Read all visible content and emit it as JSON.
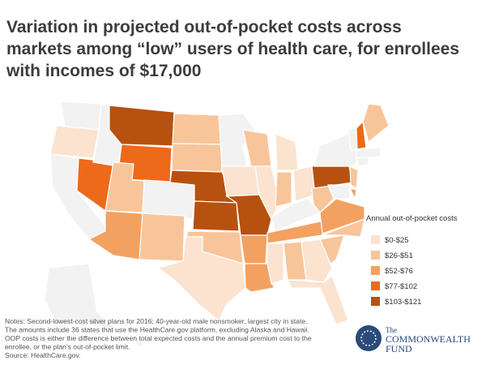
{
  "header": {
    "title_lines": [
      "Variation in projected out-of-pocket costs across",
      "markets among “low” users of health care, for enrollees",
      "with incomes of $17,000"
    ]
  },
  "legend": {
    "title": "Annual out-of-pocket costs",
    "items": [
      {
        "label": "$0-$25",
        "color": "#fbe3d0"
      },
      {
        "label": "$26-$51",
        "color": "#f8c59a"
      },
      {
        "label": "$52-$76",
        "color": "#f3a161"
      },
      {
        "label": "$77-$102",
        "color": "#ec6a1a"
      },
      {
        "label": "$103-$121",
        "color": "#b7510f"
      }
    ]
  },
  "notes": [
    "Notes: Second-lowest-cost silver plans for 2016; 40-year-old male nonsmoker, largest city in state.",
    "The amounts include 36 states that use the HealthCare.gov platform, excluding Alaska and Hawaii.",
    "OOP costs is either the difference between total expected costs and the annual premium cost to the",
    "enrollee, or the plan's out-of-pocket limit.",
    "Source: HealthCare.gov."
  ],
  "logo": {
    "line1": "The",
    "line2": "COMMONWEALTH",
    "line3": "FUND"
  }
}
